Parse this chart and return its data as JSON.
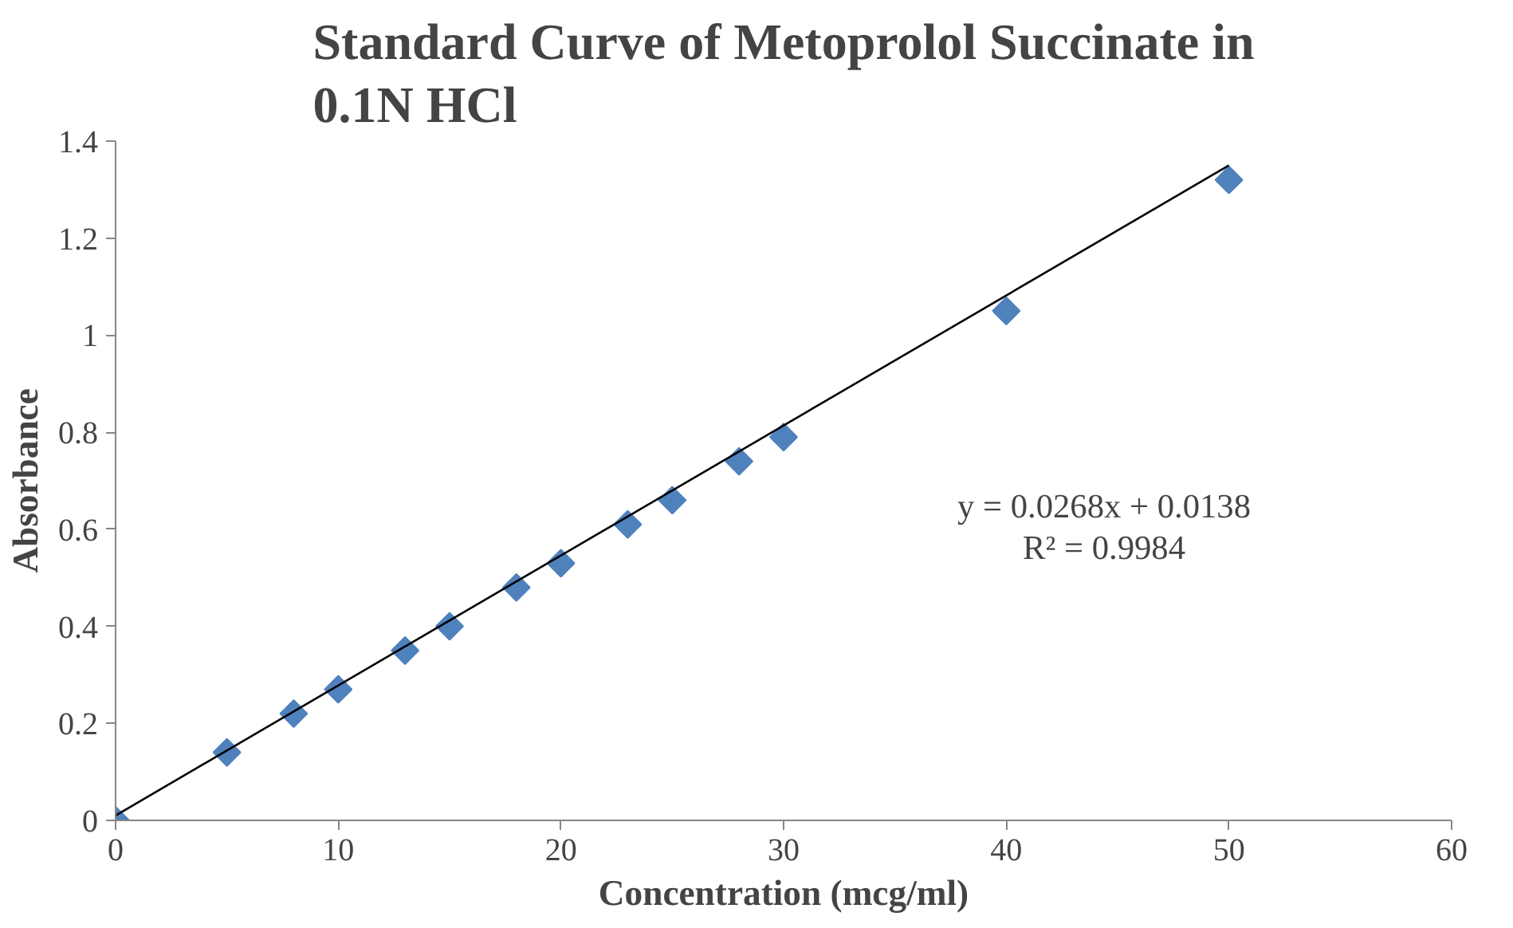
{
  "chart_data": {
    "type": "scatter",
    "title": "Standard Curve of Metoprolol Succinate in\n0.1N HCl",
    "xlabel": "Concentration (mcg/ml)",
    "ylabel": "Absorbance",
    "xlim": [
      0,
      60
    ],
    "xticks": [
      0,
      10,
      20,
      30,
      40,
      50,
      60
    ],
    "ylim": [
      0,
      1.4
    ],
    "yticks": [
      0,
      0.2,
      0.4,
      0.6,
      0.8,
      1,
      1.2,
      1.4
    ],
    "grid": false,
    "marker": "diamond",
    "series": [
      {
        "color": "#4f81bd",
        "x": [
          0,
          5,
          8,
          10,
          13,
          15,
          18,
          20,
          23,
          25,
          28,
          30,
          40,
          50
        ],
        "values": [
          0,
          0.14,
          0.22,
          0.27,
          0.35,
          0.4,
          0.48,
          0.53,
          0.61,
          0.66,
          0.74,
          0.79,
          1.05,
          1.32
        ]
      },
      {
        "type": "line",
        "color": "#000000",
        "x": [
          0,
          50
        ],
        "values": [
          0.01,
          1.35
        ],
        "marker": "none",
        "line_style": "solid"
      }
    ],
    "annotations": [
      "y = 0.0268x + 0.0138",
      "R² = 0.9984"
    ]
  }
}
